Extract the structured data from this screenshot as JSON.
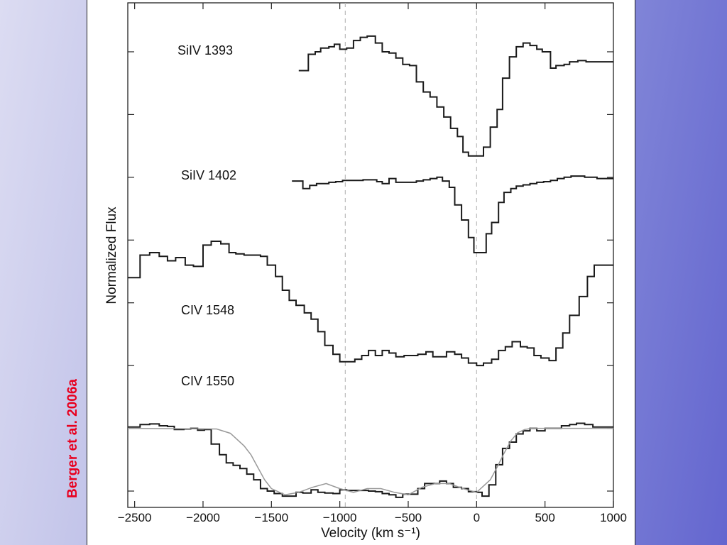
{
  "citation": "Berger et al. 2006a",
  "chart_data": {
    "type": "line",
    "xlabel": "Velocity  (km s⁻¹)",
    "ylabel": "Normalized Flux",
    "xlim": [
      -2550,
      1000
    ],
    "x_ticks": [
      "−2500",
      "−2000",
      "−1500",
      "−1000",
      "−500",
      "0",
      "500",
      "1000"
    ],
    "x_tick_values": [
      -2500,
      -2000,
      -1500,
      -1000,
      -500,
      0,
      500,
      1000
    ],
    "reference_lines_x": [
      -960,
      0
    ],
    "grid": false,
    "step_style": "histogram",
    "colors": {
      "data": "#1a1a1a",
      "model": "#999999",
      "reference": "#bbbbbb",
      "citation": "#e8001f"
    },
    "series": [
      {
        "name": "SiIV 1393",
        "x": [
          -1300,
          -1230,
          -1180,
          -1140,
          -1080,
          -1040,
          -1000,
          -950,
          -900,
          -850,
          -800,
          -740,
          -690,
          -640,
          -590,
          -540,
          -490,
          -440,
          -390,
          -340,
          -290,
          -240,
          -190,
          -140,
          -100,
          -60,
          0,
          50,
          100,
          150,
          190,
          240,
          290,
          340,
          390,
          440,
          480,
          540,
          580,
          640,
          680,
          740,
          800,
          850,
          900,
          1000
        ],
        "y": [
          6.7,
          6.96,
          7.0,
          7.06,
          7.08,
          7.12,
          7.04,
          7.06,
          7.18,
          7.23,
          7.25,
          7.14,
          7.0,
          6.98,
          6.9,
          6.8,
          6.78,
          6.52,
          6.36,
          6.28,
          6.12,
          5.96,
          5.78,
          5.65,
          5.4,
          5.34,
          5.34,
          5.48,
          5.8,
          6.08,
          6.58,
          6.92,
          7.08,
          7.14,
          7.1,
          7.04,
          7.0,
          6.74,
          6.78,
          6.8,
          6.84,
          6.86,
          6.84,
          6.84,
          6.84,
          6.84
        ]
      },
      {
        "name": "SiIV 1402",
        "x": [
          -1350,
          -1270,
          -1220,
          -1170,
          -1130,
          -1080,
          -1030,
          -980,
          -930,
          -880,
          -830,
          -780,
          -730,
          -690,
          -640,
          -590,
          -540,
          -490,
          -440,
          -390,
          -340,
          -290,
          -250,
          -200,
          -160,
          -110,
          -60,
          -20,
          20,
          70,
          110,
          160,
          200,
          250,
          290,
          340,
          390,
          440,
          490,
          540,
          590,
          640,
          690,
          740,
          790,
          840,
          880,
          1000
        ],
        "y": [
          4.94,
          4.82,
          4.87,
          4.9,
          4.9,
          4.92,
          4.93,
          4.95,
          4.95,
          4.95,
          4.96,
          4.96,
          4.93,
          4.9,
          4.98,
          4.92,
          4.92,
          4.92,
          4.94,
          4.96,
          4.98,
          5.0,
          4.94,
          4.84,
          4.56,
          4.32,
          4.04,
          3.8,
          3.8,
          4.1,
          4.28,
          4.6,
          4.76,
          4.82,
          4.86,
          4.88,
          4.9,
          4.92,
          4.93,
          4.95,
          4.98,
          5.0,
          5.02,
          5.02,
          5.0,
          5.0,
          4.98,
          4.98
        ]
      },
      {
        "name": "CIV 1548",
        "x": [
          -2550,
          -2460,
          -2390,
          -2320,
          -2260,
          -2200,
          -2130,
          -2070,
          -2000,
          -1940,
          -1870,
          -1810,
          -1760,
          -1700,
          -1650,
          -1580,
          -1530,
          -1470,
          -1420,
          -1370,
          -1320,
          -1260,
          -1210,
          -1160,
          -1110,
          -1050,
          -1000,
          -950,
          -890,
          -840,
          -790,
          -740,
          -690,
          -640,
          -590,
          -530,
          -480,
          -430,
          -370,
          -320,
          -270,
          -220,
          -160,
          -110,
          -60,
          0,
          50,
          110,
          160,
          210,
          260,
          320,
          370,
          420,
          470,
          530,
          580,
          630,
          680,
          750,
          810,
          860,
          1000
        ],
        "y": [
          3.4,
          3.76,
          3.8,
          3.74,
          3.67,
          3.72,
          3.6,
          3.58,
          3.92,
          3.98,
          3.94,
          3.8,
          3.78,
          3.76,
          3.76,
          3.74,
          3.6,
          3.42,
          3.2,
          3.04,
          2.96,
          2.84,
          2.74,
          2.54,
          2.32,
          2.18,
          2.06,
          2.06,
          2.1,
          2.16,
          2.24,
          2.16,
          2.24,
          2.2,
          2.14,
          2.16,
          2.16,
          2.18,
          2.22,
          2.14,
          2.14,
          2.22,
          2.18,
          2.12,
          2.04,
          2.0,
          2.04,
          2.1,
          2.24,
          2.3,
          2.38,
          2.3,
          2.28,
          2.16,
          2.12,
          2.08,
          2.28,
          2.52,
          2.8,
          3.1,
          3.42,
          3.6,
          3.6
        ]
      },
      {
        "name": "CIV 1550",
        "x": [
          -2550,
          -2460,
          -2390,
          -2320,
          -2260,
          -2210,
          -2140,
          -2090,
          -2040,
          -1990,
          -1940,
          -1880,
          -1830,
          -1780,
          -1730,
          -1680,
          -1630,
          -1580,
          -1530,
          -1480,
          -1420,
          -1370,
          -1320,
          -1270,
          -1210,
          -1160,
          -1110,
          -1050,
          -1000,
          -950,
          -900,
          -840,
          -790,
          -740,
          -690,
          -640,
          -590,
          -540,
          -480,
          -430,
          -380,
          -320,
          -270,
          -220,
          -170,
          -110,
          -60,
          0,
          40,
          90,
          140,
          190,
          240,
          290,
          340,
          390,
          440,
          500,
          560,
          620,
          680,
          730,
          790,
          850,
          1000
        ],
        "y": [
          1.02,
          1.06,
          1.07,
          1.04,
          1.03,
          0.98,
          0.99,
          1.0,
          0.97,
          0.98,
          0.75,
          0.58,
          0.45,
          0.41,
          0.36,
          0.27,
          0.18,
          0.04,
          0.0,
          -0.04,
          -0.08,
          -0.08,
          -0.02,
          -0.03,
          0.02,
          -0.02,
          -0.03,
          -0.04,
          0.02,
          0.01,
          0.01,
          0.01,
          0.0,
          -0.01,
          -0.04,
          -0.06,
          -0.1,
          -0.05,
          -0.05,
          0.04,
          0.12,
          0.12,
          0.16,
          0.12,
          0.06,
          0.04,
          -0.01,
          -0.02,
          -0.08,
          0.1,
          0.42,
          0.68,
          0.78,
          0.91,
          0.96,
          1.0,
          0.96,
          1.0,
          1.0,
          1.04,
          1.06,
          1.08,
          1.06,
          1.02,
          1.02
        ]
      },
      {
        "name": "",
        "style": "model-fit",
        "x": [
          -2550,
          -1900,
          -1800,
          -1700,
          -1650,
          -1600,
          -1550,
          -1500,
          -1400,
          -1300,
          -1200,
          -1100,
          -1000,
          -900,
          -800,
          -700,
          -600,
          -500,
          -400,
          -300,
          -200,
          -100,
          0,
          100,
          150,
          200,
          250,
          300,
          350,
          400,
          500,
          1000
        ],
        "y": [
          1.0,
          0.99,
          0.92,
          0.72,
          0.58,
          0.38,
          0.18,
          0.04,
          -0.06,
          -0.02,
          0.06,
          0.12,
          0.04,
          -0.02,
          0.04,
          0.04,
          -0.02,
          -0.06,
          0.06,
          0.12,
          0.12,
          0.04,
          -0.02,
          0.18,
          0.38,
          0.6,
          0.8,
          0.93,
          0.98,
          1.0,
          1.0,
          1.0
        ]
      }
    ]
  }
}
